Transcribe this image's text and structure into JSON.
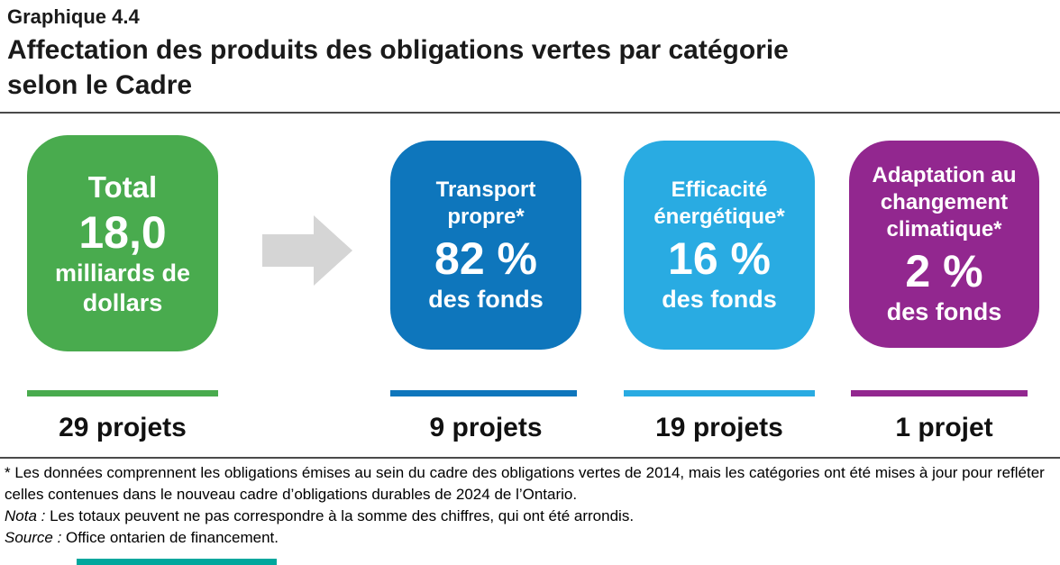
{
  "header": {
    "figure_label": "Graphique 4.4",
    "title_line1": "Affectation des produits des obligations vertes par catégorie",
    "title_line2": "selon le Cadre"
  },
  "cards": [
    {
      "title": "Total",
      "value": "18,0",
      "unit": "milliards de dollars",
      "projects": "29 projets",
      "color": "#49AB4E"
    },
    {
      "title": "Transport propre*",
      "value": "82 %",
      "unit": "des fonds",
      "projects": "9 projets",
      "color": "#0E76BC"
    },
    {
      "title": "Efficacité énergétique*",
      "value": "16 %",
      "unit": "des fonds",
      "projects": "19 projets",
      "color": "#29ABE2"
    },
    {
      "title": "Adaptation au changement climatique*",
      "value": "2 %",
      "unit": "des fonds",
      "projects": "1 projet",
      "color": "#92278F"
    }
  ],
  "icons": {
    "flow_arrow": "arrow-right-block"
  },
  "notes": {
    "footnote": "* Les données comprennent les obligations émises au sein du cadre des obligations vertes de 2014, mais les catégories ont été mises à jour pour refléter celles contenues dans le nouveau cadre d’obligations durables de 2024 de l’Ontario.",
    "nota_label": "Nota :",
    "nota_text": "Les totaux peuvent ne pas correspondre à la somme des chiffres, qui ont été arrondis.",
    "source_label": "Source :",
    "source_text": "Office ontarien de financement."
  },
  "colors": {
    "green": "#49AB4E",
    "blue": "#0E76BC",
    "cyan": "#29ABE2",
    "purple": "#92278F",
    "arrow_gray": "#D5D5D5",
    "accent_teal": "#00A79D",
    "rule": "#4A4A4A"
  },
  "chart_data": {
    "type": "bar",
    "figure_label": "Graphique 4.4",
    "title": "Affectation des produits des obligations vertes par catégorie selon le Cadre",
    "total": {
      "label": "Total",
      "amount": "18,0 milliards de dollars",
      "projects": 29
    },
    "categories": [
      "Transport propre*",
      "Efficacité énergétique*",
      "Adaptation au changement climatique*"
    ],
    "series": [
      {
        "name": "Part des fonds (%)",
        "values": [
          82,
          16,
          2
        ]
      },
      {
        "name": "Nombre de projets",
        "values": [
          9,
          19,
          1
        ]
      }
    ],
    "footnote": "* Les données comprennent les obligations émises au sein du cadre des obligations vertes de 2014, mais les catégories ont été mises à jour pour refléter celles contenues dans le nouveau cadre d’obligations durables de 2024 de l’Ontario.",
    "nota": "Les totaux peuvent ne pas correspondre à la somme des chiffres, qui ont été arrondis.",
    "source": "Office ontarien de financement."
  }
}
